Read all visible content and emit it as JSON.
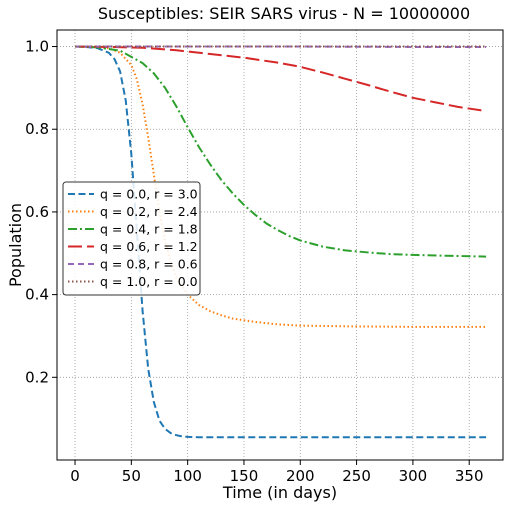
{
  "chart_data": {
    "type": "line",
    "title": "Susceptibles: SEIR SARS virus -  N = 10000000",
    "xlabel": "Time (in days)",
    "ylabel": "Population",
    "xlim": [
      -16,
      380
    ],
    "ylim": [
      0.0,
      1.04
    ],
    "x_ticks": [
      0,
      50,
      100,
      150,
      200,
      250,
      300,
      350
    ],
    "y_ticks": [
      0.2,
      0.4,
      0.6,
      0.8,
      1.0
    ],
    "x_tick_labels": [
      "0",
      "50",
      "100",
      "150",
      "200",
      "250",
      "300",
      "350"
    ],
    "y_tick_labels": [
      "0.2",
      "0.4",
      "0.6",
      "0.8",
      "1.0"
    ],
    "grid": true,
    "legend_position": "center-left",
    "series": [
      {
        "name": "q = 0.0, r = 3.0",
        "color": "#1f77b4",
        "style": "dashed",
        "x": [
          0,
          10,
          20,
          30,
          35,
          40,
          45,
          50,
          55,
          60,
          65,
          70,
          75,
          80,
          85,
          90,
          95,
          100,
          110,
          120,
          150,
          200,
          250,
          300,
          365
        ],
        "y": [
          1.0,
          0.999,
          0.996,
          0.985,
          0.97,
          0.94,
          0.87,
          0.74,
          0.55,
          0.36,
          0.22,
          0.14,
          0.095,
          0.075,
          0.065,
          0.06,
          0.057,
          0.056,
          0.055,
          0.055,
          0.055,
          0.055,
          0.055,
          0.055,
          0.055
        ]
      },
      {
        "name": "q = 0.2, r = 2.4",
        "color": "#ff7f0e",
        "style": "dotted",
        "x": [
          0,
          20,
          30,
          40,
          50,
          55,
          60,
          65,
          70,
          75,
          80,
          85,
          90,
          100,
          110,
          120,
          130,
          140,
          160,
          180,
          200,
          250,
          300,
          365
        ],
        "y": [
          1.0,
          0.999,
          0.996,
          0.985,
          0.955,
          0.92,
          0.86,
          0.78,
          0.69,
          0.6,
          0.53,
          0.48,
          0.44,
          0.4,
          0.375,
          0.36,
          0.35,
          0.342,
          0.334,
          0.328,
          0.325,
          0.323,
          0.322,
          0.322
        ]
      },
      {
        "name": "q = 0.4, r = 1.8",
        "color": "#2ca02c",
        "style": "dashdot",
        "x": [
          0,
          20,
          40,
          60,
          70,
          80,
          90,
          100,
          110,
          120,
          130,
          140,
          150,
          160,
          170,
          180,
          190,
          200,
          220,
          240,
          260,
          280,
          300,
          330,
          365
        ],
        "y": [
          1.0,
          0.998,
          0.99,
          0.96,
          0.935,
          0.9,
          0.855,
          0.805,
          0.757,
          0.715,
          0.677,
          0.645,
          0.617,
          0.593,
          0.572,
          0.556,
          0.542,
          0.531,
          0.516,
          0.507,
          0.502,
          0.498,
          0.496,
          0.494,
          0.492
        ]
      },
      {
        "name": "q = 0.6, r = 1.2",
        "color": "#d62728",
        "style": "longdash",
        "x": [
          0,
          30,
          60,
          90,
          120,
          150,
          180,
          200,
          220,
          240,
          260,
          280,
          300,
          320,
          340,
          365
        ],
        "y": [
          1.0,
          0.999,
          0.997,
          0.991,
          0.982,
          0.973,
          0.961,
          0.951,
          0.937,
          0.922,
          0.907,
          0.891,
          0.876,
          0.865,
          0.854,
          0.844
        ]
      },
      {
        "name": "q = 0.8, r = 0.6",
        "color": "#9467bd",
        "style": "dashed-dense",
        "x": [
          0,
          100,
          200,
          300,
          365
        ],
        "y": [
          1.0,
          1.0,
          1.0,
          0.999,
          0.999
        ]
      },
      {
        "name": "q = 1.0, r = 0.0",
        "color": "#8c564b",
        "style": "dotted",
        "x": [
          0,
          100,
          200,
          300,
          365
        ],
        "y": [
          1.0,
          1.0,
          1.0,
          1.0,
          1.0
        ]
      }
    ]
  }
}
